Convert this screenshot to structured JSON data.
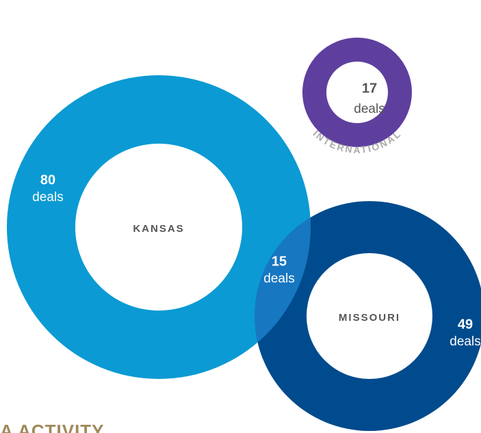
{
  "international": {
    "count": "17",
    "unit": "deals",
    "name": "INTERNATIONAL"
  },
  "kansas": {
    "count": "80",
    "unit": "deals",
    "name": "KANSAS"
  },
  "overlap": {
    "count": "15",
    "unit": "deals"
  },
  "missouri": {
    "count": "49",
    "unit": "deals",
    "name": "MISSOURI"
  },
  "heading": "A ACTIVITY"
}
